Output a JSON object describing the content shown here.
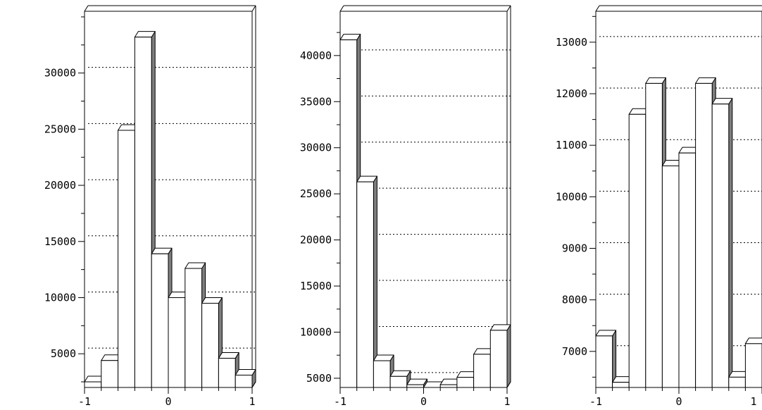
{
  "chart_data": [
    {
      "type": "bar",
      "x": [
        "-1",
        "-0.8",
        "-0.6",
        "-0.4",
        "-0.2",
        "0",
        "0.2",
        "0.4",
        "0.6",
        "0.8"
      ],
      "values": [
        2500,
        4400,
        24900,
        33200,
        13900,
        10000,
        12600,
        9500,
        4600,
        3100
      ],
      "ylim": [
        2000,
        35500
      ],
      "yticks": [
        5000,
        10000,
        15000,
        20000,
        25000,
        30000
      ],
      "ytick_labels": [
        "5000",
        "10000",
        "15000",
        "20000",
        "25000",
        "30000"
      ],
      "xticks": [
        -1,
        0,
        1
      ],
      "xtick_labels": [
        "-1",
        "0",
        "1"
      ],
      "grid": true,
      "colors": {
        "bar": "#ffffff",
        "side": "#7f7f7f",
        "edge": "#000000",
        "grid": "#000000"
      }
    },
    {
      "type": "bar",
      "x": [
        "-1",
        "-0.8",
        "-0.6",
        "-0.4",
        "-0.2",
        "0",
        "0.2",
        "0.4",
        "0.6",
        "0.8"
      ],
      "values": [
        41700,
        26300,
        6900,
        5200,
        4300,
        4000,
        4300,
        5100,
        7600,
        10200
      ],
      "ylim": [
        4000,
        44800
      ],
      "yticks": [
        5000,
        10000,
        15000,
        20000,
        25000,
        30000,
        35000,
        40000
      ],
      "ytick_labels": [
        "5000",
        "10000",
        "15000",
        "20000",
        "25000",
        "30000",
        "35000",
        "40000"
      ],
      "xticks": [
        -1,
        0,
        1
      ],
      "xtick_labels": [
        "-1",
        "0",
        "1"
      ],
      "grid": true,
      "colors": {
        "bar": "#ffffff",
        "side": "#7f7f7f",
        "edge": "#000000",
        "grid": "#000000"
      }
    },
    {
      "type": "bar",
      "x": [
        "-1",
        "-0.8",
        "-0.6",
        "-0.4",
        "-0.2",
        "0",
        "0.2",
        "0.4",
        "0.6",
        "0.8"
      ],
      "values": [
        7300,
        6400,
        11600,
        12200,
        10600,
        10850,
        12200,
        11800,
        6500,
        7150
      ],
      "ylim": [
        6300,
        13600
      ],
      "yticks": [
        7000,
        8000,
        9000,
        10000,
        11000,
        12000,
        13000
      ],
      "ytick_labels": [
        "7000",
        "8000",
        "9000",
        "10000",
        "11000",
        "12000",
        "13000"
      ],
      "xticks": [
        -1,
        0,
        1
      ],
      "xtick_labels": [
        "-1",
        "0",
        "1"
      ],
      "grid": true,
      "colors": {
        "bar": "#ffffff",
        "side": "#7f7f7f",
        "edge": "#000000",
        "grid": "#000000"
      }
    }
  ]
}
